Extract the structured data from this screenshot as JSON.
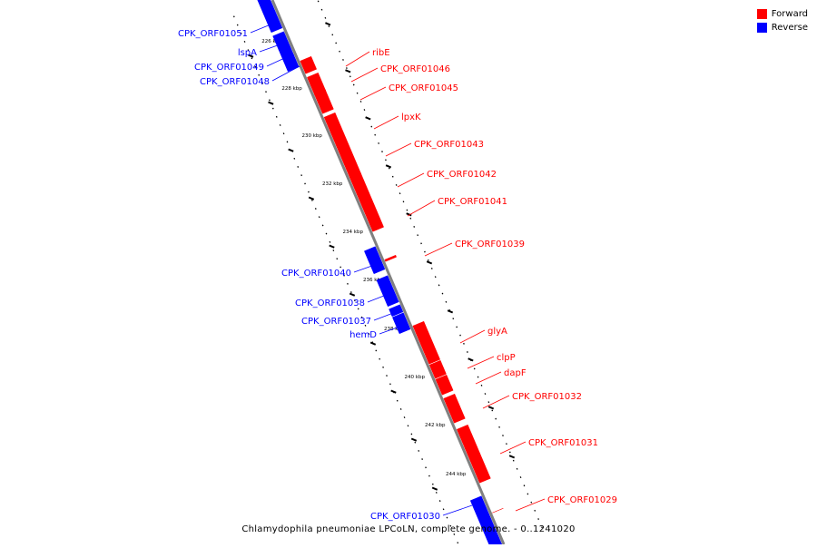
{
  "caption": "Chlamydophila pneumoniae LPCoLN, complete genome. - 0..1241020",
  "legend": [
    {
      "label": "Forward",
      "color": "#ff0000"
    },
    {
      "label": "Reverse",
      "color": "#0000ff"
    }
  ],
  "colors": {
    "forward": "#ff0000",
    "reverse": "#0000ff",
    "backbone": "#808080"
  },
  "ticks": [
    "226 kbp",
    "228 kbp",
    "230 kbp",
    "232 kbp",
    "234 kbp",
    "236 kbp",
    "238 kbp",
    "240 kbp",
    "242 kbp",
    "244 kbp"
  ],
  "genes": [
    {
      "label": "CPK_ORF01051",
      "strand": "reverse"
    },
    {
      "label": "lspA",
      "strand": "reverse"
    },
    {
      "label": "CPK_ORF01049",
      "strand": "reverse"
    },
    {
      "label": "CPK_ORF01048",
      "strand": "reverse"
    },
    {
      "label": "ribE",
      "strand": "forward"
    },
    {
      "label": "CPK_ORF01046",
      "strand": "forward"
    },
    {
      "label": "CPK_ORF01045",
      "strand": "forward"
    },
    {
      "label": "lpxK",
      "strand": "forward"
    },
    {
      "label": "CPK_ORF01043",
      "strand": "forward"
    },
    {
      "label": "CPK_ORF01042",
      "strand": "forward"
    },
    {
      "label": "CPK_ORF01041",
      "strand": "forward"
    },
    {
      "label": "CPK_ORF01039",
      "strand": "forward"
    },
    {
      "label": "CPK_ORF01040",
      "strand": "reverse"
    },
    {
      "label": "CPK_ORF01038",
      "strand": "reverse"
    },
    {
      "label": "CPK_ORF01037",
      "strand": "reverse"
    },
    {
      "label": "hemD",
      "strand": "reverse"
    },
    {
      "label": "glyA",
      "strand": "forward"
    },
    {
      "label": "clpP",
      "strand": "forward"
    },
    {
      "label": "dapF",
      "strand": "forward"
    },
    {
      "label": "CPK_ORF01032",
      "strand": "forward"
    },
    {
      "label": "CPK_ORF01031",
      "strand": "forward"
    },
    {
      "label": "CPK_ORF01029",
      "strand": "forward"
    },
    {
      "label": "CPK_ORF01030",
      "strand": "reverse"
    }
  ]
}
